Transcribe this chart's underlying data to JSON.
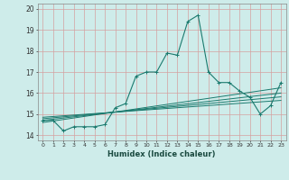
{
  "main_line": {
    "x": [
      0,
      1,
      2,
      3,
      4,
      5,
      6,
      7,
      8,
      9,
      10,
      11,
      12,
      13,
      14,
      15,
      16,
      17,
      18,
      19,
      20,
      21,
      22,
      23
    ],
    "y": [
      14.7,
      14.7,
      14.2,
      14.4,
      14.4,
      14.4,
      14.5,
      15.3,
      15.5,
      16.8,
      17.0,
      17.0,
      17.9,
      17.8,
      19.4,
      19.7,
      17.0,
      16.5,
      16.5,
      16.1,
      15.8,
      15.0,
      15.4,
      16.5
    ]
  },
  "line2": {
    "x": [
      0,
      23
    ],
    "y": [
      14.6,
      16.25
    ]
  },
  "line3": {
    "x": [
      0,
      23
    ],
    "y": [
      14.7,
      16.0
    ]
  },
  "line4": {
    "x": [
      0,
      23
    ],
    "y": [
      14.78,
      15.82
    ]
  },
  "line5": {
    "x": [
      0,
      23
    ],
    "y": [
      14.85,
      15.65
    ]
  },
  "line_color": "#1a7a6e",
  "bg_color": "#ceecea",
  "grid_color": "#d4a0a0",
  "xlabel": "Humidex (Indice chaleur)",
  "ylim": [
    13.75,
    20.25
  ],
  "xlim": [
    -0.5,
    23.5
  ],
  "yticks": [
    14,
    15,
    16,
    17,
    18,
    19,
    20
  ],
  "xticks": [
    0,
    1,
    2,
    3,
    4,
    5,
    6,
    7,
    8,
    9,
    10,
    11,
    12,
    13,
    14,
    15,
    16,
    17,
    18,
    19,
    20,
    21,
    22,
    23
  ]
}
